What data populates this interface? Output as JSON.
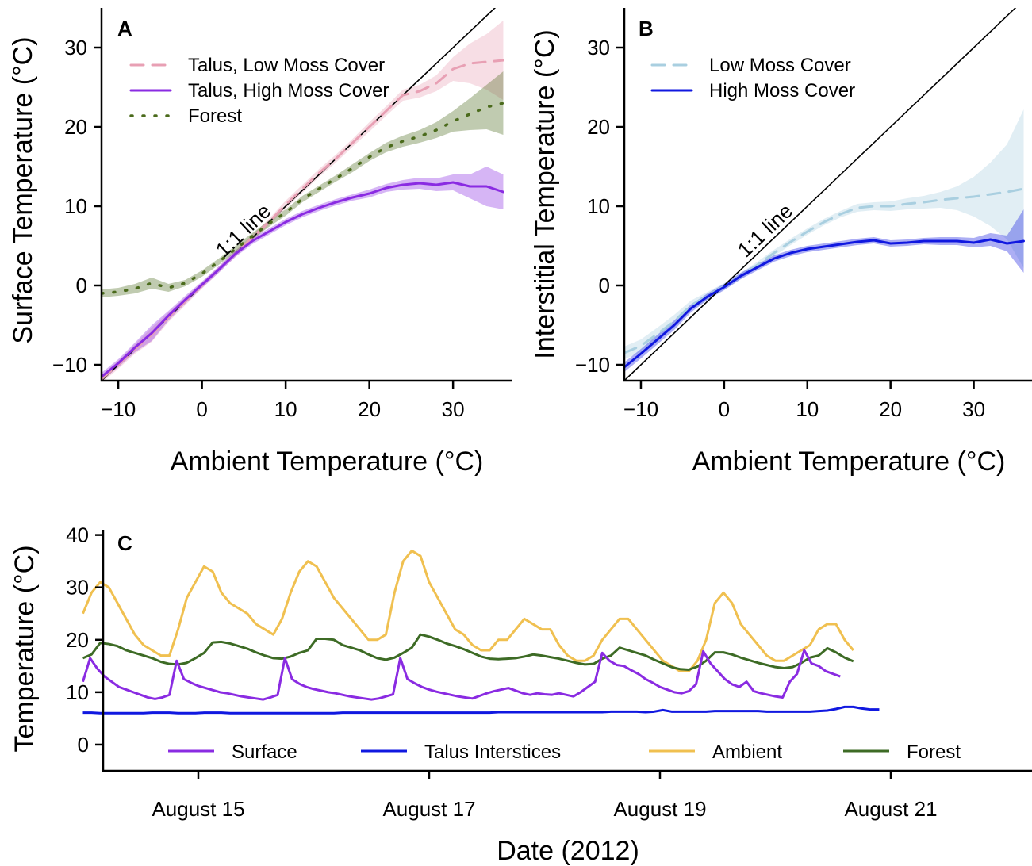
{
  "chart_data": [
    {
      "panel": "A",
      "type": "line",
      "xlabel": "Ambient Temperature (°C)",
      "ylabel": "Surface Temperature (°C)",
      "xlim": [
        -12,
        37
      ],
      "ylim": [
        -12,
        35
      ],
      "xticks": [
        "−10",
        "0",
        "10",
        "20",
        "30"
      ],
      "xtick_values": [
        -10,
        0,
        10,
        20,
        30
      ],
      "yticks": [
        "−10",
        "0",
        "10",
        "20",
        "30"
      ],
      "ytick_values": [
        -10,
        0,
        10,
        20,
        30
      ],
      "legend_position": "top-left",
      "annotation": "1:1 line",
      "series": [
        {
          "name": "Talus, Low Moss Cover",
          "color": "#e8a0b4",
          "dash": "dashed",
          "x": [
            -12,
            -10,
            -8,
            -6,
            -4,
            -2,
            0,
            2,
            4,
            6,
            8,
            10,
            12,
            14,
            16,
            18,
            20,
            22,
            24,
            26,
            28,
            30,
            32,
            34,
            36
          ],
          "y": [
            -11.8,
            -10,
            -8,
            -6.2,
            -4,
            -2,
            0,
            2,
            4,
            6,
            8,
            10.2,
            12.2,
            14.2,
            16,
            18,
            20,
            22,
            24,
            24.5,
            25.5,
            27.3,
            28,
            28.2,
            28.4
          ],
          "ci": [
            0.5,
            0.5,
            0.6,
            0.9,
            0.6,
            0.5,
            0.4,
            0.4,
            0.4,
            0.4,
            0.4,
            0.5,
            0.5,
            0.5,
            0.5,
            0.5,
            0.6,
            0.6,
            0.7,
            0.8,
            1,
            1.5,
            2.5,
            3.5,
            5
          ]
        },
        {
          "name": "Talus, High Moss Cover",
          "color": "#8a2be2",
          "dash": "solid",
          "x": [
            -12,
            -10,
            -8,
            -6,
            -4,
            -2,
            0,
            2,
            4,
            6,
            8,
            10,
            12,
            14,
            16,
            18,
            20,
            22,
            24,
            26,
            28,
            30,
            32,
            34,
            36
          ],
          "y": [
            -11.5,
            -9.8,
            -7.8,
            -6,
            -3.8,
            -1.8,
            0.1,
            2,
            4,
            5.6,
            6.8,
            8,
            9,
            9.8,
            10.5,
            11.1,
            11.6,
            12.3,
            12.7,
            12.9,
            12.7,
            13,
            12.5,
            12.5,
            11.8
          ],
          "ci": [
            0.5,
            0.5,
            0.6,
            1,
            0.6,
            0.5,
            0.4,
            0.4,
            0.4,
            0.4,
            0.4,
            0.4,
            0.4,
            0.4,
            0.4,
            0.4,
            0.5,
            0.5,
            0.6,
            0.7,
            0.8,
            1,
            1.5,
            2.5,
            2.2
          ]
        },
        {
          "name": "Forest",
          "color": "#4b6b1c",
          "dash": "dotted",
          "x": [
            -12,
            -10,
            -8,
            -6,
            -4,
            -2,
            0,
            2,
            4,
            6,
            8,
            10,
            12,
            14,
            16,
            18,
            20,
            22,
            24,
            26,
            28,
            30,
            32,
            34,
            36
          ],
          "y": [
            -1,
            -0.8,
            -0.4,
            0.3,
            -0.3,
            0.3,
            1.5,
            3,
            4.6,
            6.2,
            7.8,
            9.2,
            10.9,
            12.2,
            13.5,
            14.8,
            16.2,
            17.4,
            18.2,
            18.8,
            19.6,
            20.7,
            21.6,
            22.5,
            23
          ],
          "ci": [
            0.5,
            0.5,
            0.6,
            0.7,
            0.5,
            0.4,
            0.4,
            0.4,
            0.4,
            0.4,
            0.4,
            0.4,
            0.4,
            0.4,
            0.4,
            0.5,
            0.5,
            0.6,
            0.7,
            0.8,
            1,
            1.3,
            2,
            2.8,
            4
          ]
        }
      ]
    },
    {
      "panel": "B",
      "type": "line",
      "xlabel": "Ambient Temperature (°C)",
      "ylabel": "Interstitial Temperature (°C)",
      "xlim": [
        -12,
        37
      ],
      "ylim": [
        -12,
        35
      ],
      "xticks": [
        "−10",
        "0",
        "10",
        "20",
        "30"
      ],
      "xtick_values": [
        -10,
        0,
        10,
        20,
        30
      ],
      "yticks": [
        "−10",
        "0",
        "10",
        "20",
        "30"
      ],
      "ytick_values": [
        -10,
        0,
        10,
        20,
        30
      ],
      "legend_position": "top-left",
      "annotation": "1:1 line",
      "series": [
        {
          "name": "Low Moss Cover",
          "color": "#a9cfe0",
          "dash": "dashed",
          "x": [
            -12,
            -10,
            -8,
            -6,
            -4,
            -2,
            0,
            2,
            4,
            6,
            8,
            10,
            12,
            14,
            16,
            18,
            20,
            22,
            24,
            26,
            28,
            30,
            32,
            34,
            36
          ],
          "y": [
            -8.5,
            -7.6,
            -6.1,
            -4.5,
            -2.5,
            -1.3,
            -0.1,
            1.2,
            2.6,
            4.1,
            5.5,
            6.8,
            8,
            9,
            9.8,
            10,
            10,
            10.3,
            10.5,
            10.8,
            11,
            11.2,
            11.5,
            11.8,
            12.2
          ],
          "ci": [
            0.8,
            0.8,
            0.8,
            0.8,
            0.6,
            0.5,
            0.4,
            0.4,
            0.4,
            0.4,
            0.4,
            0.4,
            0.4,
            0.4,
            0.5,
            0.5,
            0.6,
            0.7,
            0.8,
            1,
            1.5,
            2.5,
            4,
            6,
            10
          ]
        },
        {
          "name": "High Moss Cover",
          "color": "#1018e0",
          "dash": "solid",
          "x": [
            -12,
            -10,
            -8,
            -6,
            -4,
            -2,
            0,
            2,
            4,
            6,
            8,
            10,
            12,
            14,
            16,
            18,
            20,
            22,
            24,
            26,
            28,
            30,
            32,
            34,
            36
          ],
          "y": [
            -10.3,
            -8.6,
            -6.8,
            -5,
            -2.9,
            -1.4,
            -0.2,
            1.2,
            2.3,
            3.4,
            4.1,
            4.6,
            4.9,
            5.2,
            5.5,
            5.7,
            5.3,
            5.4,
            5.6,
            5.6,
            5.6,
            5.4,
            5.8,
            5.3,
            5.6
          ],
          "ci": [
            0.6,
            0.6,
            0.6,
            0.6,
            0.5,
            0.4,
            0.4,
            0.4,
            0.4,
            0.4,
            0.4,
            0.4,
            0.4,
            0.4,
            0.4,
            0.4,
            0.4,
            0.4,
            0.4,
            0.5,
            0.5,
            0.6,
            0.8,
            1,
            4
          ]
        }
      ]
    },
    {
      "panel": "C",
      "type": "line",
      "xlabel": "Date (2012)",
      "ylabel": "Temperature (°C)",
      "xlim": [
        0,
        28
      ],
      "ylim": [
        -5,
        41
      ],
      "xticks": [
        "August 15",
        "August 17",
        "August 19",
        "August 21"
      ],
      "xtick_values": [
        4,
        12,
        20,
        28
      ],
      "yticks": [
        "0",
        "10",
        "20",
        "30",
        "40"
      ],
      "ytick_values": [
        0,
        10,
        20,
        30,
        40
      ],
      "legend_position": "bottom",
      "series": [
        {
          "name": "Surface",
          "color": "#8a2be2",
          "values": [
            12,
            16.5,
            14.5,
            13,
            12,
            11,
            10.5,
            10,
            9.5,
            9,
            8.7,
            9,
            9.5,
            16,
            12.5,
            11.8,
            11.2,
            10.8,
            10.4,
            10,
            9.8,
            9.5,
            9.2,
            9,
            8.8,
            8.6,
            9,
            9.5,
            16.5,
            12.5,
            11.6,
            11,
            10.6,
            10.3,
            10,
            9.8,
            9.5,
            9.2,
            9,
            8.8,
            8.6,
            8.8,
            9.2,
            9.6,
            16.5,
            12.5,
            11.7,
            11,
            10.5,
            10.1,
            9.8,
            9.5,
            9.2,
            9,
            8.8,
            9.3,
            9.8,
            10.2,
            10.5,
            10.8,
            10.3,
            9.8,
            9.5,
            9.8,
            9.6,
            9.5,
            9.8,
            9.5,
            9.2,
            10,
            11,
            12,
            17.5,
            16,
            15.2,
            15,
            14.2,
            13.5,
            12.5,
            11.8,
            11,
            10.5,
            10,
            9.8,
            10.2,
            11.5,
            17.8,
            15.5,
            14,
            12.5,
            11.5,
            11,
            12,
            10.2,
            9.8,
            9.5,
            9.2,
            9,
            12,
            13.5,
            18,
            15.5,
            15,
            14,
            13.5,
            13
          ],
          "start": 0,
          "step": 0.25
        },
        {
          "name": "Talus Interstices",
          "color": "#1018e0",
          "values": [
            6.1,
            6.1,
            6,
            6,
            6,
            6,
            6,
            6,
            6.1,
            6.1,
            6.1,
            6,
            6,
            6,
            6.1,
            6.1,
            6.1,
            6,
            6,
            6,
            6,
            6,
            6,
            6,
            6,
            6,
            6,
            6,
            6,
            6,
            6.1,
            6.1,
            6.1,
            6.1,
            6.1,
            6.1,
            6.1,
            6.1,
            6.1,
            6.1,
            6.1,
            6.1,
            6.1,
            6.1,
            6.1,
            6.1,
            6.1,
            6.1,
            6.2,
            6.2,
            6.2,
            6.2,
            6.2,
            6.2,
            6.2,
            6.2,
            6.2,
            6.2,
            6.2,
            6.2,
            6.2,
            6.3,
            6.3,
            6.3,
            6.3,
            6.2,
            6.3,
            6.6,
            6.3,
            6.3,
            6.3,
            6.3,
            6.3,
            6.4,
            6.4,
            6.4,
            6.4,
            6.4,
            6.4,
            6.3,
            6.3,
            6.3,
            6.3,
            6.3,
            6.3,
            6.4,
            6.5,
            6.8,
            7.2,
            7.2,
            6.9,
            6.7,
            6.7
          ],
          "start": 0,
          "step": 0.3
        },
        {
          "name": "Ambient",
          "color": "#f0c050",
          "values": [
            25,
            29,
            31,
            30,
            27,
            24,
            21,
            19,
            18,
            17,
            17,
            22,
            28,
            31,
            34,
            33,
            29,
            27,
            26,
            25,
            23,
            22,
            21,
            24,
            29,
            33,
            35,
            34,
            31,
            28,
            26,
            24,
            22,
            20,
            20,
            21,
            29,
            35,
            37,
            36,
            31,
            28,
            25,
            22,
            21,
            19,
            18,
            18,
            20,
            20,
            22,
            24,
            23,
            22,
            22,
            19,
            17,
            16,
            16,
            17,
            20,
            22,
            24,
            24,
            22,
            20,
            18,
            16,
            15,
            14,
            14,
            16,
            20,
            27,
            29,
            27,
            23,
            21,
            19,
            17,
            16,
            16,
            17,
            18,
            19,
            22,
            23,
            23,
            20,
            18
          ],
          "start": 0,
          "step": 0.3
        },
        {
          "name": "Forest",
          "color": "#3d6b25",
          "values": [
            16.5,
            17.2,
            19.4,
            19.2,
            18.8,
            18,
            17.5,
            17,
            16.5,
            15.8,
            15.4,
            15.3,
            15.6,
            16.5,
            17.5,
            19.5,
            19.6,
            19.3,
            18.8,
            18.3,
            17.6,
            17,
            16.5,
            16.4,
            16.8,
            17.5,
            18,
            20.2,
            20.2,
            20,
            19,
            18.5,
            18,
            17.2,
            16.5,
            16.2,
            16.6,
            17.5,
            18.5,
            21,
            20.6,
            20,
            19.3,
            18.8,
            18.2,
            17.5,
            16.8,
            16.4,
            16.3,
            16.4,
            16.5,
            16.8,
            17.2,
            17,
            16.7,
            16.4,
            16,
            15.6,
            15.3,
            15.4,
            16.4,
            17,
            18.5,
            18,
            17.5,
            17,
            16.2,
            15.5,
            14.8,
            14.4,
            14.3,
            14.9,
            16,
            17.6,
            17.6,
            17.2,
            16.6,
            16.1,
            15.6,
            15.2,
            14.8,
            14.6,
            14.8,
            15.6,
            16.6,
            17,
            18.4,
            17.6,
            16.6,
            15.9
          ],
          "start": 0,
          "step": 0.3
        }
      ]
    }
  ]
}
